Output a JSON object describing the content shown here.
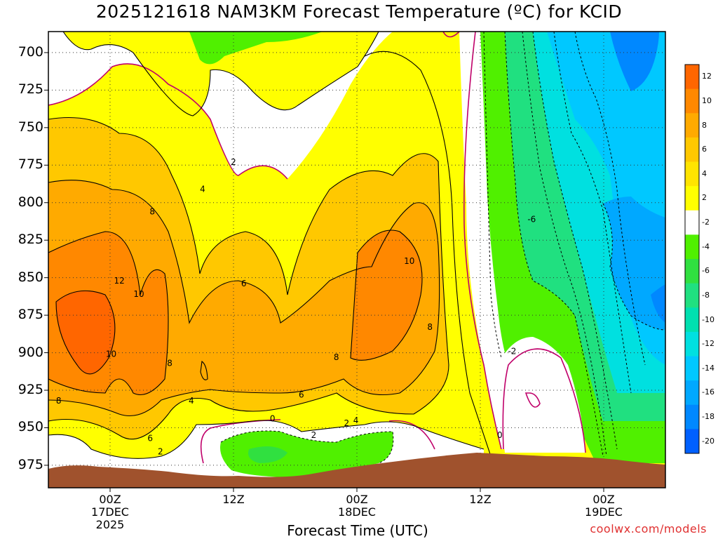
{
  "title": "2025121618 NAM3KM Forecast Temperature (ºC) for KCID",
  "x_axis_title": "Forecast Time (UTC)",
  "credit": "coolwx.com/models",
  "chart_data": {
    "type": "contour",
    "y_axis_name": "pressure (hPa)",
    "y_ticks": [
      700,
      725,
      750,
      775,
      800,
      825,
      850,
      875,
      900,
      925,
      950,
      975
    ],
    "y_range": [
      686,
      990
    ],
    "x_ticks": [
      {
        "hour": 6,
        "lines": [
          "00Z",
          "17DEC",
          "2025"
        ]
      },
      {
        "hour": 18,
        "lines": [
          "12Z",
          "",
          ""
        ]
      },
      {
        "hour": 30,
        "lines": [
          "00Z",
          "18DEC",
          ""
        ]
      },
      {
        "hour": 42,
        "lines": [
          "12Z",
          "",
          ""
        ]
      },
      {
        "hour": 54,
        "lines": [
          "00Z",
          "19DEC",
          ""
        ]
      }
    ],
    "x_range_hours": [
      0,
      60
    ],
    "colorbar": {
      "labels": [
        "12",
        "10",
        "8",
        "6",
        "4",
        "2",
        "-2",
        "-4",
        "-6",
        "-8",
        "-10",
        "-12",
        "-14",
        "-16",
        "-18",
        "-20"
      ],
      "colors": [
        "#ff6600",
        "#ff8800",
        "#ffaa00",
        "#ffc800",
        "#ffe400",
        "#ffff00",
        "#ffffff",
        "#50f000",
        "#30e040",
        "#20e080",
        "#00e0b0",
        "#00e0e0",
        "#00c8ff",
        "#00a8ff",
        "#0088ff",
        "#0060ff"
      ]
    },
    "contour_labels": [
      {
        "text": "12",
        "hour": 6.9,
        "p": 852
      },
      {
        "text": "10",
        "hour": 8.8,
        "p": 861
      },
      {
        "text": "10",
        "hour": 6.1,
        "p": 901
      },
      {
        "text": "8",
        "hour": 10.1,
        "p": 806
      },
      {
        "text": "8",
        "hour": 11.8,
        "p": 907
      },
      {
        "text": "8",
        "hour": 1.0,
        "p": 932
      },
      {
        "text": "6",
        "hour": 9.9,
        "p": 957
      },
      {
        "text": "6",
        "hour": 19.0,
        "p": 854
      },
      {
        "text": "6",
        "hour": 24.6,
        "p": 928
      },
      {
        "text": "4",
        "hour": 15.0,
        "p": 791
      },
      {
        "text": "4",
        "hour": 13.9,
        "p": 932
      },
      {
        "text": "4",
        "hour": 29.9,
        "p": 945
      },
      {
        "text": "2",
        "hour": 18.0,
        "p": 773
      },
      {
        "text": "2",
        "hour": 10.9,
        "p": 966
      },
      {
        "text": "2",
        "hour": 25.8,
        "p": 955
      },
      {
        "text": "2",
        "hour": 29.0,
        "p": 947
      },
      {
        "text": "0",
        "hour": 21.8,
        "p": 944
      },
      {
        "text": "0",
        "hour": 43.9,
        "p": 955
      },
      {
        "text": "8",
        "hour": 28.0,
        "p": 903
      },
      {
        "text": "8",
        "hour": 37.1,
        "p": 883
      },
      {
        "text": "10",
        "hour": 35.1,
        "p": 839
      },
      {
        "text": "-2",
        "hour": 45.1,
        "p": 899
      },
      {
        "text": "-6",
        "hour": 47.0,
        "p": 811
      }
    ]
  }
}
